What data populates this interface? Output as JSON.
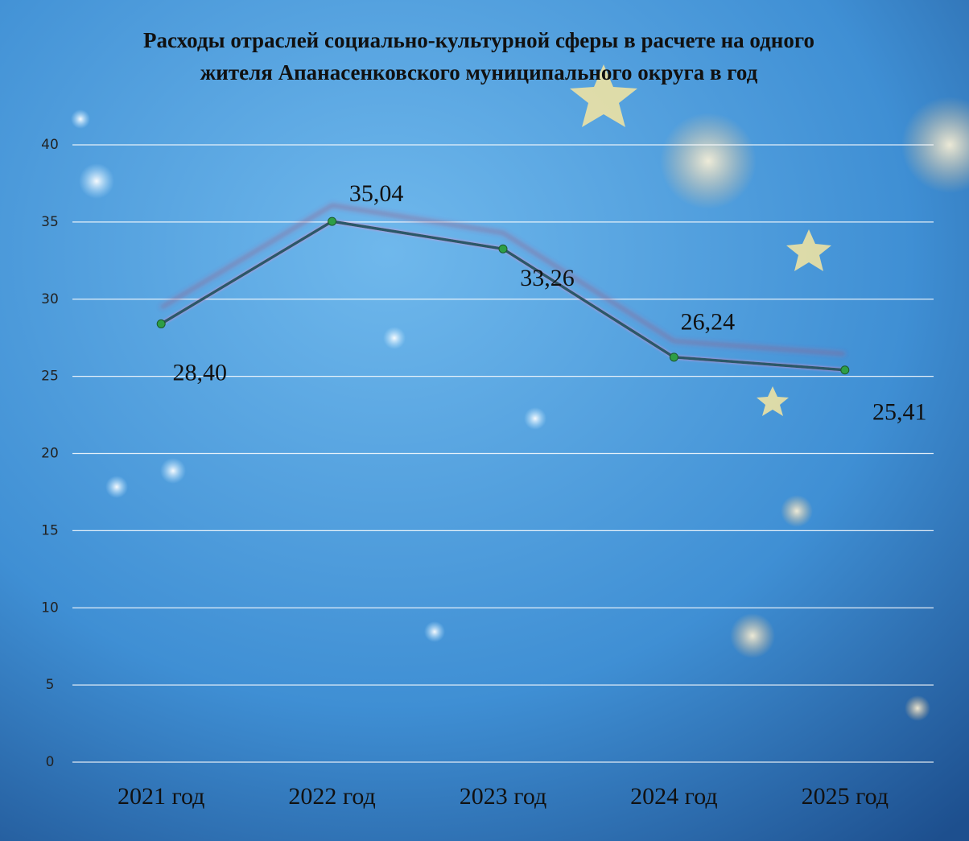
{
  "chart_data": {
    "type": "line",
    "title": "Расходы отраслей социально-культурной сферы в расчете на одного жителя Апанасенковского муниципального округа в год",
    "categories": [
      "2021 год",
      "2022 год",
      "2023 год",
      "2024 год",
      "2025 год"
    ],
    "values": [
      28.4,
      35.04,
      33.26,
      26.24,
      25.41
    ],
    "value_labels": [
      "28,40",
      "35,04",
      "33,26",
      "26,24",
      "25,41"
    ],
    "color": "#2b5868",
    "marker_color": "#2e9e46",
    "ylim": [
      0,
      40
    ],
    "yticks": [
      0,
      5,
      10,
      15,
      20,
      25,
      30,
      35,
      40
    ],
    "grid": true
  }
}
